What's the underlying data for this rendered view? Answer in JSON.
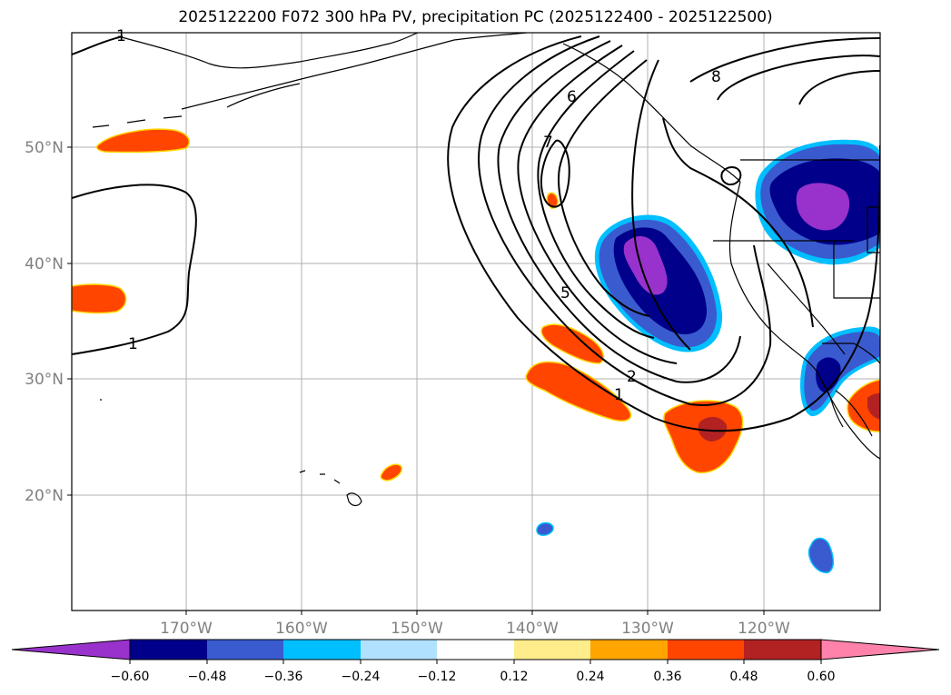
{
  "title": "2025122200 F072 300 hPa PV, precipitation PC (2025122400 - 2025122500)",
  "map": {
    "lon_labels": [
      "170°W",
      "160°W",
      "150°W",
      "140°W",
      "130°W",
      "120°W"
    ],
    "lat_labels": [
      "50°N",
      "40°N",
      "30°N",
      "20°N"
    ],
    "pv_contour_labels": [
      "1",
      "1",
      "2",
      "5",
      "6",
      "7",
      "8",
      "1"
    ]
  },
  "colorbar": {
    "tick_labels": [
      "−0.60",
      "−0.48",
      "−0.36",
      "−0.24",
      "−0.12",
      "0.12",
      "0.24",
      "0.36",
      "0.48",
      "0.60"
    ],
    "colors": [
      "#9932cc",
      "#00008b",
      "#3a5bcf",
      "#00bfff",
      "#b0e2ff",
      "#ffffff",
      "#ffec8b",
      "#ffa500",
      "#ff4500",
      "#b22222",
      "#ff82ab"
    ]
  },
  "colors": {
    "grid": "#b0b0b0",
    "tick_text": "#808080",
    "pv_contour": "#000000",
    "coast": "#000000"
  }
}
